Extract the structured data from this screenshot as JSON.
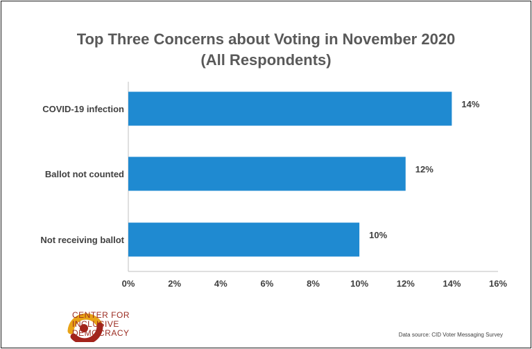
{
  "chart_data": {
    "type": "bar",
    "orientation": "horizontal",
    "title_line1": "Top Three Concerns about Voting in November 2020",
    "title_line2": "(All Respondents)",
    "categories": [
      "COVID-19 infection",
      "Ballot not counted",
      "Not receiving ballot"
    ],
    "values": [
      14,
      12,
      10
    ],
    "data_labels": [
      "14%",
      "12%",
      "10%"
    ],
    "xlim": [
      0,
      16
    ],
    "x_ticks": [
      0,
      2,
      4,
      6,
      8,
      10,
      12,
      14,
      16
    ],
    "x_tick_labels": [
      "0%",
      "2%",
      "4%",
      "6%",
      "8%",
      "10%",
      "12%",
      "14%",
      "16%"
    ],
    "xlabel": "",
    "ylabel": "",
    "grid": false,
    "bar_color": "#1f8ad1"
  },
  "footer": {
    "logo_line1": "CENTER FOR",
    "logo_line2": "INCLUSIVE",
    "logo_line3": "DEMOCRACY",
    "source": "Data source: CID Voter Messaging Survey"
  }
}
